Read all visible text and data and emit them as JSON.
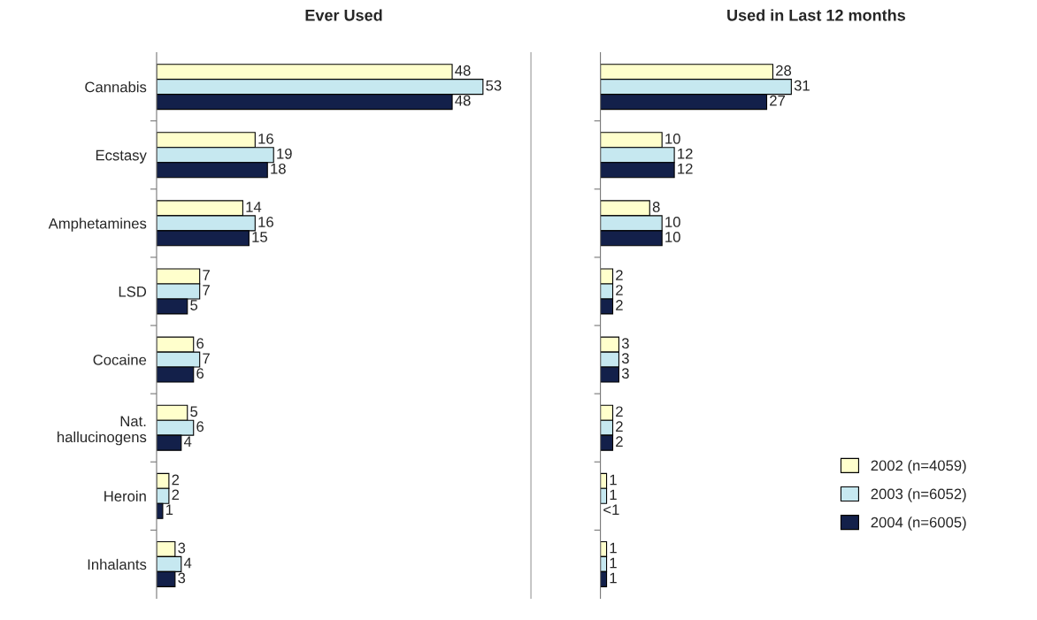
{
  "chart_data": [
    {
      "type": "bar",
      "orientation": "horizontal",
      "title": "Ever Used",
      "categories": [
        "Cannabis",
        "Ecstasy",
        "Amphetamines",
        "LSD",
        "Cocaine",
        "Nat.\nhallucinogens",
        "Heroin",
        "Inhalants"
      ],
      "data_labels": true,
      "tick_labels": "y",
      "grid": false,
      "legend": false,
      "series": [
        {
          "color": "#ffffcc",
          "values": [
            48,
            16,
            14,
            7,
            6,
            5,
            2,
            3
          ]
        },
        {
          "color": "#c6e8f0",
          "values": [
            53,
            19,
            16,
            7,
            7,
            6,
            2,
            4
          ]
        },
        {
          "color": "#13204a",
          "values": [
            48,
            18,
            15,
            5,
            6,
            4,
            1,
            3
          ]
        }
      ]
    },
    {
      "type": "bar",
      "orientation": "horizontal",
      "title": "Used in Last 12 months",
      "categories": [
        null,
        null,
        null,
        null,
        null,
        null,
        null,
        null
      ],
      "data_labels": true,
      "tick_labels": false,
      "grid": false,
      "legend": "bottom right",
      "series": [
        {
          "name": "2002 (n=4059)",
          "color": "#ffffcc",
          "values": [
            28,
            10,
            8,
            2,
            3,
            2,
            1,
            1
          ]
        },
        {
          "name": "2003 (n=6052)",
          "color": "#c6e8f0",
          "values": [
            31,
            12,
            10,
            2,
            3,
            2,
            1,
            1
          ]
        },
        {
          "name": "2004 (n=6005)",
          "color": "#13204a",
          "values": [
            27,
            12,
            10,
            2,
            3,
            2,
            null,
            1
          ],
          "value_labels": [
            "27",
            "12",
            "10",
            "2",
            "3",
            "2",
            "<1",
            "1"
          ]
        }
      ]
    }
  ]
}
